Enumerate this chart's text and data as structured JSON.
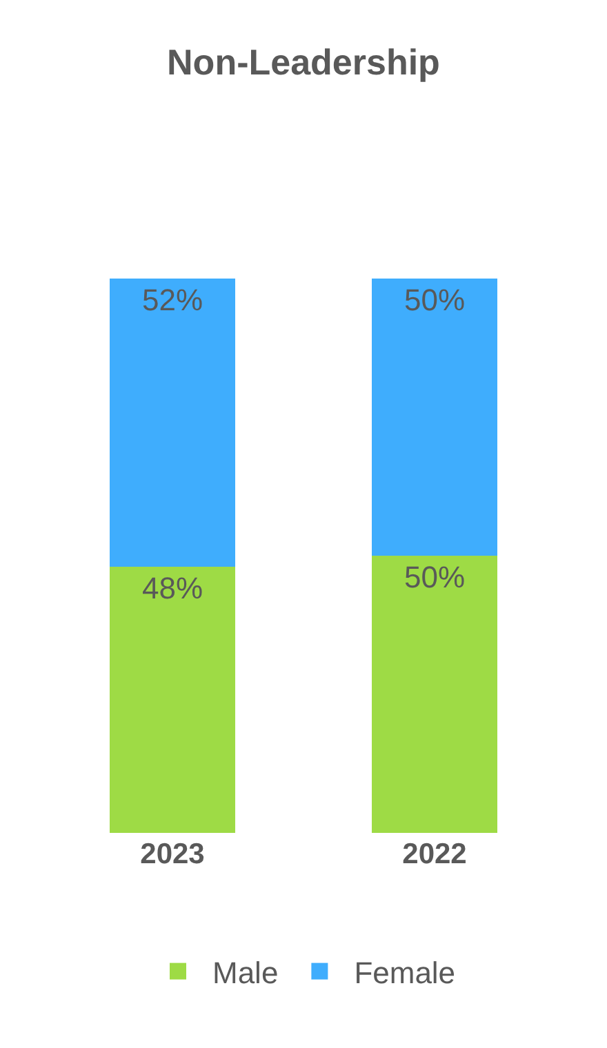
{
  "chart_data": {
    "type": "bar",
    "title": "Non-Leadership",
    "categories": [
      "2023",
      "2022"
    ],
    "stacked": true,
    "ylim": [
      0,
      100
    ],
    "tick_labels": "x",
    "legend": "bottom",
    "series": [
      {
        "name": "Male",
        "color": "#9edb45",
        "values": [
          48,
          50
        ],
        "value_labels": [
          "48%",
          "50%"
        ]
      },
      {
        "name": "Female",
        "color": "#3fadfd",
        "values": [
          52,
          50
        ],
        "value_labels": [
          "52%",
          "50%"
        ]
      }
    ]
  }
}
